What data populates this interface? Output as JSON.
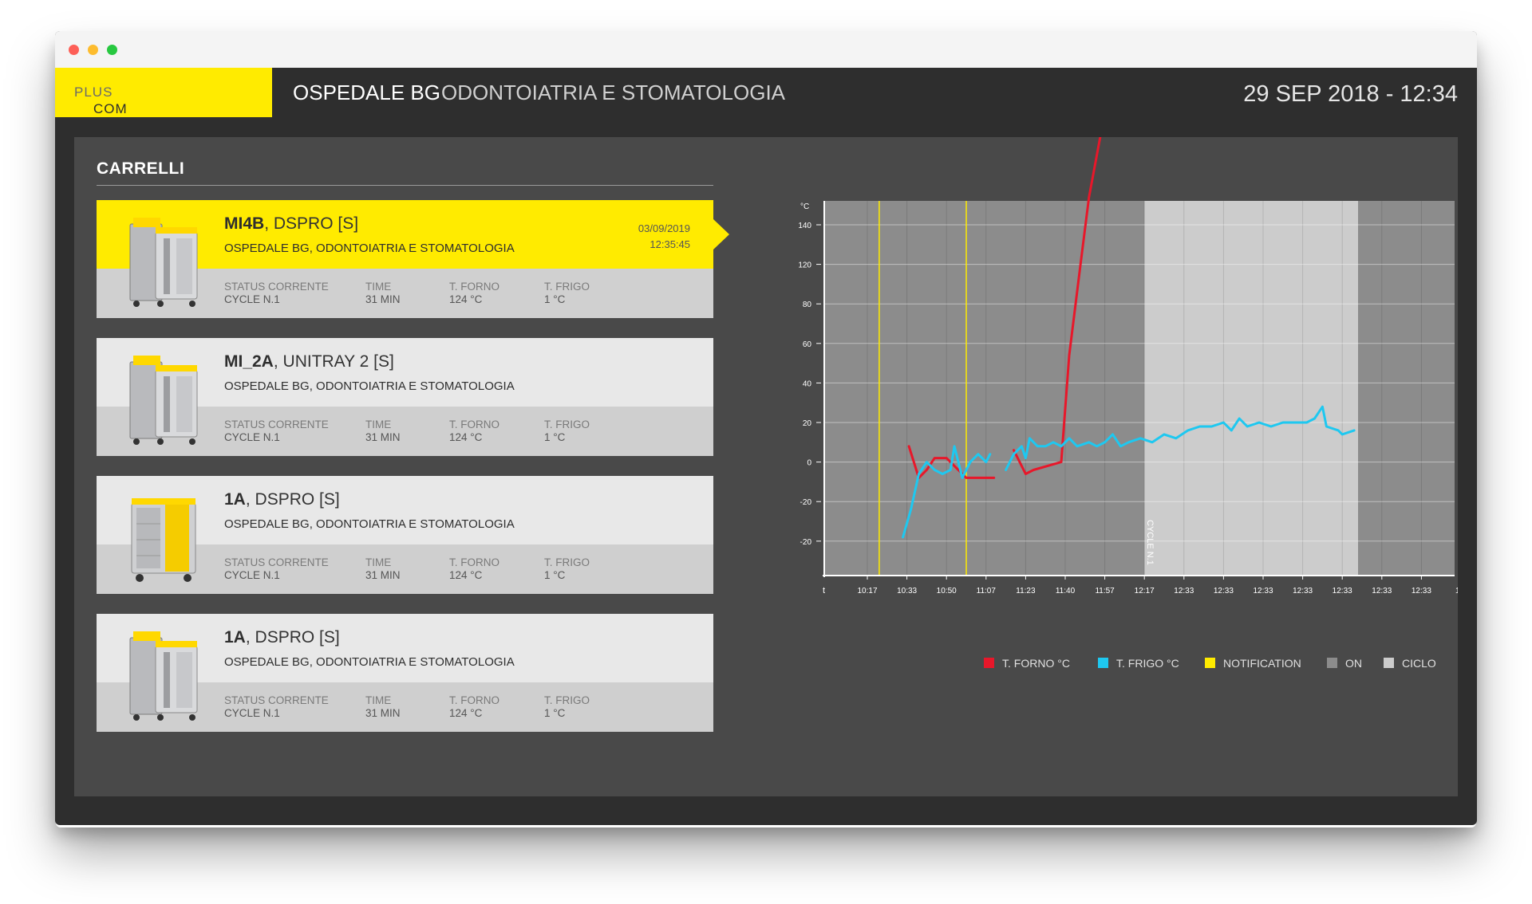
{
  "window": {
    "controls": [
      "close",
      "minimize",
      "zoom"
    ]
  },
  "header": {
    "logo_main": "COM",
    "logo_accent": "PLUS",
    "hospital": "OSPEDALE BG",
    "department": "ODONTOIATRIA E STOMATOLOGIA",
    "datetime": "29 SEP 2018 - 12:34",
    "accent_color": "#ffeb00"
  },
  "section": {
    "title": "CARRELLI"
  },
  "cards": [
    {
      "id": "MI4B",
      "model": ", DSPRO [S]",
      "location": "OSPEDALE BG, ODONTOIATRIA E STOMATOLOGIA",
      "date": "03/09/2019",
      "time": "12:35:45",
      "active": true,
      "cart_type": "dspro-proserv",
      "status_label": "STATUS CORRENTE",
      "status_value": "CYCLE N.1",
      "time_label": "TIME",
      "time_value": "31 MIN",
      "forno_label": "T. FORNO",
      "forno_value": "124 °C",
      "frigo_label": "T. FRIGO",
      "frigo_value": "1 °C"
    },
    {
      "id": "MI_2A",
      "model": ", UNITRAY 2 [S]",
      "location": "OSPEDALE BG, ODONTOIATRIA E STOMATOLOGIA",
      "date": "",
      "time": "",
      "active": false,
      "cart_type": "dspro-proserv",
      "status_label": "STATUS CORRENTE",
      "status_value": "CYCLE N.1",
      "time_label": "TIME",
      "time_value": "31 MIN",
      "forno_label": "T. FORNO",
      "forno_value": "124 °C",
      "frigo_label": "T. FRIGO",
      "frigo_value": "1 °C"
    },
    {
      "id": "1A",
      "model": ", DSPRO [S]",
      "location": "OSPEDALE BG, ODONTOIATRIA E STOMATOLOGIA",
      "date": "",
      "time": "",
      "active": false,
      "cart_type": "unitray",
      "status_label": "STATUS CORRENTE",
      "status_value": "CYCLE N.1",
      "time_label": "TIME",
      "time_value": "31 MIN",
      "forno_label": "T. FORNO",
      "forno_value": "124 °C",
      "frigo_label": "T. FRIGO",
      "frigo_value": "1 °C"
    },
    {
      "id": "1A",
      "model": ", DSPRO [S]",
      "location": "OSPEDALE BG, ODONTOIATRIA E STOMATOLOGIA",
      "date": "",
      "time": "",
      "active": false,
      "cart_type": "dspro-proserv",
      "status_label": "STATUS CORRENTE",
      "status_value": "CYCLE N.1",
      "time_label": "TIME",
      "time_value": "31 MIN",
      "forno_label": "T. FORNO",
      "forno_value": "124 °C",
      "frigo_label": "T. FRIGO",
      "frigo_value": "1 °C"
    }
  ],
  "chart_data": {
    "type": "line",
    "ylabel": "°C",
    "xlabel": "t",
    "x_tick_labels": [
      "10:17",
      "10:33",
      "10:50",
      "11:07",
      "11:23",
      "11:40",
      "11:57",
      "12:17",
      "12:33",
      "12:33",
      "12:33",
      "12:33",
      "12:33",
      "12:33",
      "12:33",
      "12:"
    ],
    "y_tick_labels": [
      "140",
      "120",
      "80",
      "60",
      "40",
      "20",
      "0",
      "-20",
      "-20"
    ],
    "grid": true,
    "cycle_label": "CYCLE N.1",
    "bands": [
      {
        "from_x": 0,
        "to_x": 7,
        "state": "ON"
      },
      {
        "from_x": 7,
        "to_x": 12.4,
        "state": "CICLO"
      },
      {
        "from_x": 12.4,
        "to_x": 16,
        "state": "ON"
      }
    ],
    "notifications_x": [
      0.3,
      2.5
    ],
    "series": [
      {
        "name": "T. FORNO °C",
        "color": "#e8172a",
        "segments": [
          [
            [
              1.05,
              5.6
            ],
            [
              1.3,
              6.4
            ],
            [
              1.5,
              6.2
            ],
            [
              1.7,
              5.9
            ],
            [
              2.0,
              5.9
            ],
            [
              2.5,
              6.4
            ],
            [
              3.2,
              6.4
            ]
          ],
          [
            [
              3.7,
              5.7
            ],
            [
              4.0,
              6.3
            ],
            [
              4.2,
              6.2
            ],
            [
              4.9,
              6.0
            ],
            [
              5.1,
              3.3
            ],
            [
              5.4,
              0.9
            ],
            [
              5.6,
              -0.7
            ],
            [
              5.9,
              -2.3
            ],
            [
              6.3,
              -3.6
            ],
            [
              6.6,
              -4.4
            ],
            [
              6.9,
              -5.2
            ],
            [
              7.0,
              -5.4
            ],
            [
              7.1,
              -5.0
            ],
            [
              7.3,
              -5.2
            ],
            [
              7.5,
              -5.6
            ],
            [
              7.6,
              -4.6
            ],
            [
              7.7,
              -5.5
            ],
            [
              7.9,
              -5.5
            ],
            [
              8.0,
              -4.7
            ],
            [
              8.2,
              -5.5
            ],
            [
              8.4,
              -5.5
            ],
            [
              8.5,
              -4.7
            ],
            [
              8.7,
              -5.6
            ],
            [
              8.9,
              -4.7
            ],
            [
              9.0,
              -5.5
            ],
            [
              9.2,
              -5.5
            ],
            [
              9.3,
              -4.6
            ],
            [
              9.5,
              -5.5
            ],
            [
              9.7,
              -4.7
            ],
            [
              9.9,
              -5.6
            ],
            [
              10.0,
              -4.9
            ],
            [
              10.2,
              -5.6
            ],
            [
              10.4,
              -5.7
            ],
            [
              10.6,
              -4.5
            ],
            [
              10.8,
              -5.5
            ],
            [
              11.0,
              -4.0
            ],
            [
              11.2,
              -4.5
            ],
            [
              11.3,
              -4.3
            ],
            [
              11.5,
              -3.6
            ],
            [
              11.7,
              -4.7
            ],
            [
              11.8,
              -4.5
            ],
            [
              11.9,
              -3.2
            ],
            [
              12.1,
              -2.5
            ]
          ]
        ]
      },
      {
        "name": "T. FRIGO °C",
        "color": "#1ec8f0",
        "segments": [
          [
            [
              0.9,
              7.9
            ],
            [
              1.1,
              7.2
            ],
            [
              1.3,
              6.3
            ],
            [
              1.5,
              6.0
            ],
            [
              1.7,
              6.2
            ],
            [
              1.9,
              6.3
            ],
            [
              2.1,
              6.2
            ],
            [
              2.2,
              5.6
            ],
            [
              2.4,
              6.4
            ],
            [
              2.6,
              6.0
            ],
            [
              2.8,
              5.8
            ],
            [
              3.0,
              6.0
            ],
            [
              3.1,
              5.8
            ]
          ],
          [
            [
              3.5,
              6.2
            ],
            [
              3.7,
              5.8
            ],
            [
              3.9,
              5.6
            ],
            [
              4.0,
              5.9
            ],
            [
              4.1,
              5.4
            ],
            [
              4.3,
              5.6
            ],
            [
              4.5,
              5.6
            ],
            [
              4.7,
              5.5
            ],
            [
              4.9,
              5.6
            ],
            [
              5.1,
              5.4
            ],
            [
              5.3,
              5.6
            ],
            [
              5.6,
              5.5
            ],
            [
              5.8,
              5.6
            ],
            [
              6.0,
              5.5
            ],
            [
              6.2,
              5.3
            ],
            [
              6.4,
              5.6
            ],
            [
              6.6,
              5.5
            ],
            [
              6.9,
              5.4
            ],
            [
              7.2,
              5.5
            ],
            [
              7.5,
              5.3
            ],
            [
              7.8,
              5.4
            ],
            [
              8.1,
              5.2
            ],
            [
              8.4,
              5.1
            ],
            [
              8.7,
              5.1
            ],
            [
              9.0,
              5.0
            ],
            [
              9.2,
              5.2
            ],
            [
              9.4,
              4.9
            ],
            [
              9.6,
              5.1
            ],
            [
              9.9,
              5.0
            ],
            [
              10.2,
              5.1
            ],
            [
              10.5,
              5.0
            ],
            [
              10.9,
              5.0
            ],
            [
              11.1,
              5.0
            ],
            [
              11.3,
              4.9
            ],
            [
              11.5,
              4.6
            ],
            [
              11.6,
              5.1
            ],
            [
              11.9,
              5.2
            ],
            [
              12.0,
              5.3
            ],
            [
              12.3,
              5.2
            ]
          ]
        ]
      }
    ],
    "legend": [
      {
        "label": "T. FORNO °C",
        "color": "#e8172a"
      },
      {
        "label": "T. FRIGO °C",
        "color": "#1ec8f0"
      },
      {
        "label": "NOTIFICATION",
        "color": "#ffeb00"
      },
      {
        "label": "ON",
        "color": "#8c8c8c"
      },
      {
        "label": "CICLO",
        "color": "#cccccc"
      }
    ]
  }
}
